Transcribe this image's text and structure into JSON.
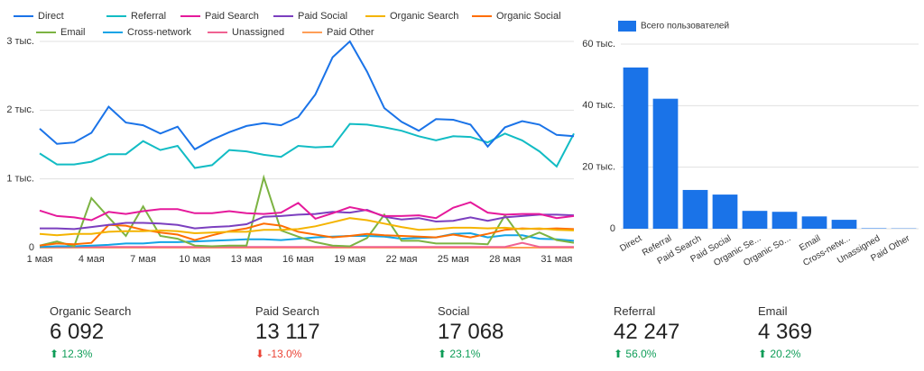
{
  "chart_data": [
    {
      "type": "line",
      "categories": [
        "1 мая",
        null,
        null,
        "4 мая",
        null,
        null,
        "7 мая",
        null,
        null,
        "10 мая",
        null,
        null,
        "13 мая",
        null,
        null,
        "16 мая",
        null,
        null,
        "19 мая",
        null,
        null,
        "22 мая",
        null,
        null,
        "25 мая",
        null,
        null,
        "28 мая",
        null,
        null,
        "31 мая",
        null
      ],
      "ylim": [
        0,
        3000
      ],
      "yticks": [
        0,
        {
          "value": 1000,
          "label": "1 тыс."
        },
        {
          "value": 2000,
          "label": "2 тыс."
        },
        {
          "value": 3000,
          "label": "3 тыс."
        }
      ],
      "grid": true,
      "series": [
        {
          "name": "Direct",
          "color": "#1a73e8",
          "values": [
            1730,
            1510,
            1530,
            1670,
            2050,
            1820,
            1780,
            1660,
            1760,
            1430,
            1570,
            1680,
            1770,
            1810,
            1780,
            1900,
            2230,
            2770,
            3000,
            2560,
            2030,
            1830,
            1700,
            1870,
            1860,
            1790,
            1470,
            1750,
            1840,
            1790,
            1640,
            1620
          ]
        },
        {
          "name": "Referral",
          "color": "#12bcc4",
          "values": [
            1370,
            1210,
            1210,
            1250,
            1360,
            1360,
            1550,
            1420,
            1480,
            1160,
            1200,
            1420,
            1400,
            1350,
            1320,
            1480,
            1460,
            1470,
            1800,
            1790,
            1750,
            1700,
            1620,
            1560,
            1620,
            1610,
            1530,
            1660,
            1560,
            1400,
            1180,
            1660
          ]
        },
        {
          "name": "Paid Search",
          "color": "#e5199b",
          "values": [
            540,
            460,
            440,
            400,
            520,
            490,
            530,
            560,
            560,
            500,
            500,
            530,
            500,
            490,
            510,
            650,
            420,
            500,
            590,
            540,
            460,
            460,
            470,
            430,
            580,
            660,
            510,
            480,
            490,
            490,
            430,
            460
          ]
        },
        {
          "name": "Paid Social",
          "color": "#7b3fbf",
          "values": [
            280,
            280,
            270,
            300,
            330,
            360,
            360,
            350,
            330,
            280,
            300,
            310,
            340,
            450,
            460,
            480,
            490,
            520,
            510,
            550,
            450,
            410,
            430,
            380,
            390,
            440,
            390,
            440,
            460,
            480,
            480,
            470
          ]
        },
        {
          "name": "Organic Search",
          "color": "#f4b400",
          "values": [
            200,
            180,
            200,
            200,
            230,
            240,
            240,
            250,
            240,
            210,
            220,
            230,
            230,
            260,
            260,
            270,
            310,
            370,
            430,
            400,
            350,
            300,
            260,
            270,
            290,
            290,
            280,
            290,
            270,
            280,
            260,
            250
          ]
        },
        {
          "name": "Organic Social",
          "color": "#ff6d00",
          "values": [
            30,
            60,
            50,
            70,
            330,
            320,
            260,
            220,
            190,
            110,
            180,
            240,
            280,
            350,
            320,
            230,
            190,
            150,
            170,
            200,
            180,
            170,
            160,
            150,
            190,
            150,
            200,
            260,
            280,
            270,
            280,
            270
          ]
        },
        {
          "name": "Email",
          "color": "#7cb342",
          "values": [
            30,
            90,
            20,
            720,
            440,
            170,
            600,
            170,
            130,
            30,
            20,
            30,
            30,
            1020,
            250,
            160,
            80,
            30,
            20,
            140,
            480,
            100,
            100,
            60,
            60,
            60,
            50,
            470,
            120,
            220,
            110,
            70
          ]
        },
        {
          "name": "Cross-network",
          "color": "#12a4e6",
          "values": [
            10,
            20,
            20,
            30,
            40,
            60,
            60,
            80,
            80,
            90,
            100,
            110,
            120,
            120,
            110,
            130,
            150,
            160,
            170,
            170,
            160,
            130,
            140,
            150,
            200,
            210,
            150,
            180,
            180,
            130,
            120,
            100
          ]
        },
        {
          "name": "Unassigned",
          "color": "#f06292",
          "values": [
            10,
            10,
            10,
            10,
            10,
            10,
            10,
            10,
            10,
            10,
            10,
            10,
            10,
            10,
            10,
            10,
            10,
            10,
            10,
            10,
            10,
            10,
            10,
            10,
            10,
            10,
            10,
            10,
            70,
            10,
            10,
            10
          ]
        },
        {
          "name": "Paid Other",
          "color": "#ff9e57",
          "values": [
            0,
            0,
            0,
            0,
            0,
            0,
            0,
            0,
            0,
            0,
            0,
            0,
            0,
            0,
            0,
            0,
            0,
            0,
            0,
            0,
            0,
            0,
            0,
            0,
            0,
            0,
            0,
            0,
            0,
            0,
            0,
            0
          ]
        }
      ]
    },
    {
      "type": "bar",
      "categories": [
        "Direct",
        "Referral",
        "Paid Search",
        "Paid Social",
        "Organic Se...",
        "Organic So...",
        "Email",
        "Cross-netw...",
        "Unassigned",
        "Paid Other"
      ],
      "ylim": [
        0,
        60000
      ],
      "yticks": [
        0,
        {
          "value": 20000,
          "label": "20 тыс."
        },
        {
          "value": 40000,
          "label": "40 тыс."
        },
        {
          "value": 60000,
          "label": "60 тыс."
        }
      ],
      "grid": true,
      "series": [
        {
          "name": "Всего пользователей",
          "color": "#1a73e8",
          "values": [
            52400,
            42247,
            12600,
            11100,
            5800,
            5500,
            4000,
            2900,
            150,
            100
          ]
        }
      ]
    }
  ],
  "scorecards": [
    {
      "label": "Organic Search",
      "value": "6 092",
      "change": "12.3%"
    },
    {
      "label": "Paid Search",
      "value": "13 117",
      "change": "-13.0%"
    },
    {
      "label": "Social",
      "value": "17 068",
      "change": "23.1%"
    },
    {
      "label": "Referral",
      "value": "42 247",
      "change": "56.0%"
    },
    {
      "label": "Email",
      "value": "4 369",
      "change": "20.2%"
    }
  ]
}
